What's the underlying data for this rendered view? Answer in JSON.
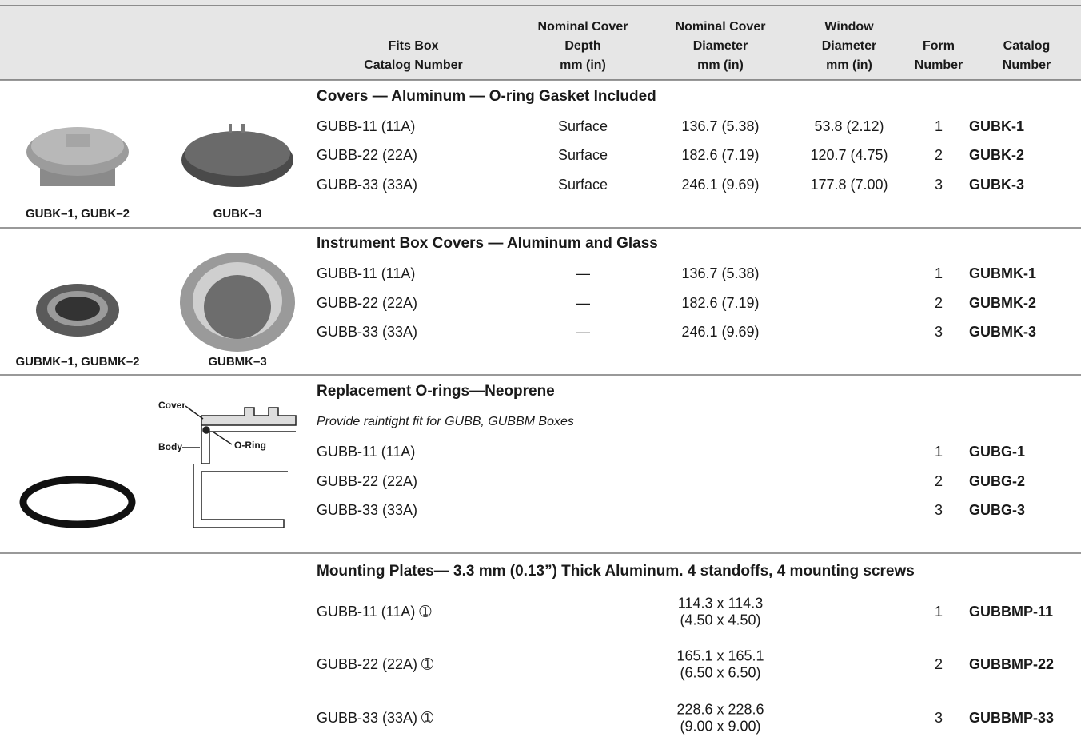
{
  "table": {
    "headers": [
      [
        "Fits Box",
        "Catalog Number"
      ],
      [
        "Nominal Cover",
        "Depth",
        "mm (in)"
      ],
      [
        "Nominal Cover",
        "Diameter",
        "mm (in)"
      ],
      [
        "Window",
        "Diameter",
        "mm (in)"
      ],
      [
        "Form",
        "Number"
      ],
      [
        "Catalog",
        "Number"
      ]
    ],
    "sections": [
      {
        "title": "Covers — Aluminum — O-ring Gasket Included",
        "captions": [
          "GUBK–1, GUBK–2",
          "GUBK–3"
        ],
        "rows": [
          {
            "fits": "GUBB-11 (11A)",
            "depth": "Surface",
            "diameter": [
              "136.7 (5.38)"
            ],
            "window": "53.8 (2.12)",
            "form": 1,
            "catalog": "GUBK-1"
          },
          {
            "fits": "GUBB-22 (22A)",
            "depth": "Surface",
            "diameter": [
              "182.6 (7.19)"
            ],
            "window": "120.7 (4.75)",
            "form": 2,
            "catalog": "GUBK-2"
          },
          {
            "fits": "GUBB-33 (33A)",
            "depth": "Surface",
            "diameter": [
              "246.1 (9.69)"
            ],
            "window": "177.8 (7.00)",
            "form": 3,
            "catalog": "GUBK-3"
          }
        ]
      },
      {
        "title": "Instrument Box Covers — Aluminum and Glass",
        "captions": [
          "GUBMK–1, GUBMK–2",
          "GUBMK–3"
        ],
        "rows": [
          {
            "fits": "GUBB-11 (11A)",
            "depth": "—",
            "diameter": [
              "136.7 (5.38)"
            ],
            "form": 1,
            "catalog": "GUBMK-1"
          },
          {
            "fits": "GUBB-22 (22A)",
            "depth": "—",
            "diameter": [
              "182.6 (7.19)"
            ],
            "form": 2,
            "catalog": "GUBMK-2"
          },
          {
            "fits": "GUBB-33 (33A)",
            "depth": "—",
            "diameter": [
              "246.1 (9.69)"
            ],
            "form": 3,
            "catalog": "GUBMK-3"
          }
        ]
      },
      {
        "title": "Replacement O-rings—Neoprene",
        "note": "Provide raintight fit for GUBB, GUBBM Boxes",
        "diagram_labels": [
          "Cover",
          "Body",
          "O-Ring"
        ],
        "rows": [
          {
            "fits": "GUBB-11 (11A)",
            "form": 1,
            "catalog": "GUBG-1"
          },
          {
            "fits": "GUBB-22 (22A)",
            "form": 2,
            "catalog": "GUBG-2"
          },
          {
            "fits": "GUBB-33 (33A)",
            "form": 3,
            "catalog": "GUBG-3"
          }
        ]
      },
      {
        "title": "Mounting Plates— 3.3 mm (0.13”) Thick Aluminum. 4 standoffs, 4 mounting screws",
        "rows": [
          {
            "fits": "GUBB-11 (11A) ➀",
            "diameter": [
              "114.3 x 114.3",
              "(4.50 x 4.50)"
            ],
            "form": 1,
            "catalog": "GUBBMP-11"
          },
          {
            "fits": "GUBB-22 (22A) ➀",
            "diameter": [
              "165.1 x 165.1",
              "(6.50 x 6.50)"
            ],
            "form": 2,
            "catalog": "GUBBMP-22"
          },
          {
            "fits": "GUBB-33 (33A) ➀",
            "diameter": [
              "228.6 x 228.6",
              "(9.00 x 9.00)"
            ],
            "form": 3,
            "catalog": "GUBBMP-33"
          }
        ]
      }
    ]
  }
}
